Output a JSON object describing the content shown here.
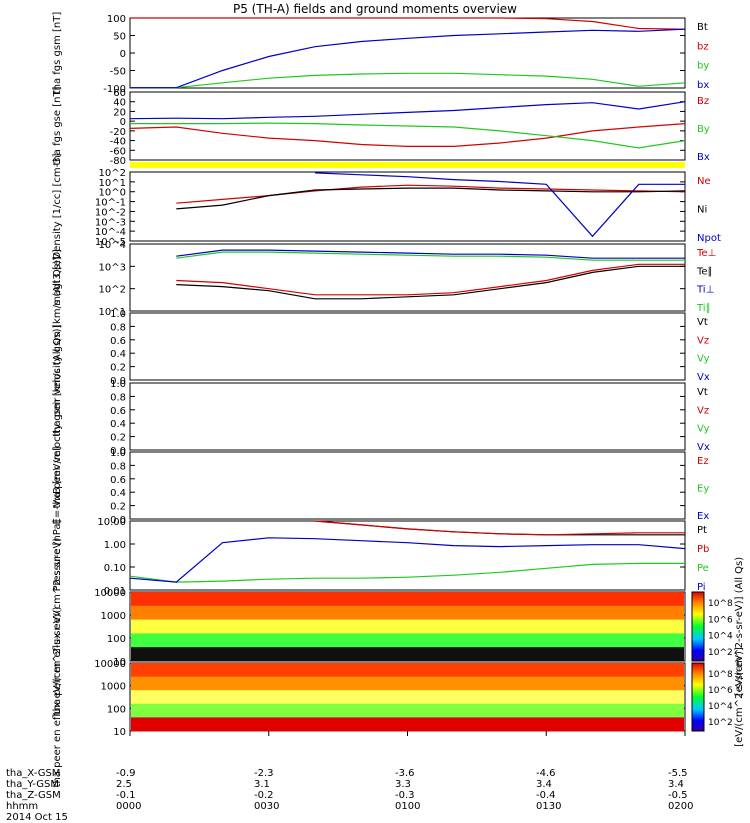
{
  "title": "P5 (TH-A) fields and ground moments overview",
  "colors": {
    "black": "#000000",
    "red": "#d40000",
    "green": "#20c820",
    "blue": "#0000c8",
    "yellow": "#ffff00"
  },
  "footer": {
    "labels": [
      "tha_X-GSM",
      "tha_Y-GSM",
      "tha_Z-GSM",
      "hhmm",
      "2014 Oct 15"
    ],
    "x_gsm": [
      "-0.9",
      "-2.3",
      "-3.6",
      "-4.6",
      "-5.5"
    ],
    "y_gsm": [
      "2.5",
      "3.1",
      "3.3",
      "3.4",
      "3.4"
    ],
    "z_gsm": [
      "-0.1",
      "-0.2",
      "-0.3",
      "-0.4",
      "-0.5"
    ],
    "hhmm": [
      "0000",
      "0030",
      "0100",
      "0130",
      "0200"
    ]
  },
  "chart_data": [
    {
      "type": "line",
      "id": "bfield_gsm",
      "ylabel": "tha fgs gsm [nT]",
      "ylim": [
        -100,
        100
      ],
      "yticks": [
        "100",
        "50",
        "0",
        "-50",
        "-100"
      ],
      "legend": [
        {
          "name": "Bt",
          "color": "black"
        },
        {
          "name": "bz",
          "color": "red"
        },
        {
          "name": "by",
          "color": "green"
        },
        {
          "name": "bx",
          "color": "blue"
        }
      ],
      "x": [
        0,
        10,
        20,
        30,
        40,
        50,
        60,
        70,
        80,
        90,
        100,
        110,
        120
      ],
      "series": [
        {
          "name": "bz",
          "color": "red",
          "values": [
            100,
            100,
            100,
            100,
            100,
            100,
            100,
            100,
            100,
            98,
            90,
            70,
            68
          ]
        },
        {
          "name": "by",
          "color": "green",
          "values": [
            -99,
            -99,
            -85,
            -72,
            -64,
            -60,
            -58,
            -58,
            -62,
            -66,
            -75,
            -95,
            -85
          ]
        },
        {
          "name": "bx",
          "color": "blue",
          "values": [
            -99,
            -99,
            -50,
            -10,
            18,
            33,
            42,
            50,
            55,
            60,
            65,
            62,
            68
          ]
        }
      ]
    },
    {
      "type": "line",
      "id": "bfield_gse",
      "ylabel": "tha fgs gse [nT]",
      "ylim": [
        -80,
        60
      ],
      "yticks": [
        "60",
        "40",
        "20",
        "0",
        "-20",
        "-40",
        "-60",
        "-80"
      ],
      "legend": [
        {
          "name": "Bz",
          "color": "red"
        },
        {
          "name": "By",
          "color": "green"
        },
        {
          "name": "Bx",
          "color": "blue"
        }
      ],
      "x": [
        0,
        10,
        20,
        30,
        40,
        50,
        60,
        70,
        80,
        90,
        100,
        110,
        120
      ],
      "series": [
        {
          "name": "Bz",
          "color": "red",
          "values": [
            -15,
            -12,
            -25,
            -35,
            -40,
            -48,
            -52,
            -52,
            -45,
            -35,
            -20,
            -12,
            -5
          ]
        },
        {
          "name": "By",
          "color": "green",
          "values": [
            -5,
            -5,
            -5,
            -4,
            -5,
            -8,
            -10,
            -12,
            -20,
            -30,
            -40,
            -55,
            -40
          ]
        },
        {
          "name": "Bx",
          "color": "blue",
          "values": [
            5,
            6,
            5,
            8,
            10,
            14,
            18,
            22,
            28,
            34,
            38,
            25,
            40
          ]
        }
      ]
    },
    {
      "type": "line",
      "id": "density",
      "ylabel": "Density [1/cc] [cm-3]",
      "ylim_log10": [
        -5,
        2.3
      ],
      "yticks": [
        "10^2",
        "10^1",
        "10^0",
        "10^-1",
        "10^-2",
        "10^-3",
        "10^-4",
        "10^-5"
      ],
      "legend": [
        {
          "name": "Ne",
          "color": "red"
        },
        {
          "name": "Ni",
          "color": "black"
        },
        {
          "name": "Npot",
          "color": "blue"
        }
      ],
      "x": [
        10,
        20,
        30,
        40,
        50,
        60,
        70,
        80,
        90,
        100,
        110,
        120
      ],
      "series": [
        {
          "name": "Ne",
          "color": "red",
          "log10_values": [
            -1,
            -0.6,
            -0.2,
            0.3,
            0.7,
            0.9,
            0.8,
            0.6,
            0.5,
            0.4,
            0.3,
            0.2
          ]
        },
        {
          "name": "Ni",
          "color": "black",
          "log10_values": [
            -1.6,
            -1.2,
            -0.2,
            0.4,
            0.5,
            0.6,
            0.6,
            0.4,
            0.3,
            0.2,
            0.2,
            0.3
          ]
        },
        {
          "name": "Npot",
          "color": "blue",
          "log10_values": [
            null,
            null,
            null,
            2.2,
            2.0,
            1.8,
            1.5,
            1.3,
            1.0,
            -4.5,
            1.0,
            1.0
          ]
        }
      ]
    },
    {
      "type": "line",
      "id": "temperature",
      "ylabel": "magt3 [eV]",
      "ylim_log10": [
        1,
        4.3
      ],
      "yticks": [
        "10^4",
        "10^3",
        "10^2",
        "10^1"
      ],
      "legend": [
        {
          "name": "Te⊥",
          "color": "red"
        },
        {
          "name": "Te∥",
          "color": "black"
        },
        {
          "name": "Ti⊥",
          "color": "blue"
        },
        {
          "name": "Ti∥",
          "color": "green"
        }
      ],
      "x": [
        10,
        20,
        30,
        40,
        50,
        60,
        70,
        80,
        90,
        100,
        110,
        120
      ],
      "series": [
        {
          "name": "Ti",
          "color": "blue",
          "log10_values": [
            3.7,
            4.0,
            4.0,
            3.95,
            3.9,
            3.85,
            3.8,
            3.8,
            3.75,
            3.6,
            3.6,
            3.6
          ]
        },
        {
          "name": "Ti∥",
          "color": "green",
          "log10_values": [
            3.6,
            3.9,
            3.9,
            3.85,
            3.8,
            3.75,
            3.7,
            3.7,
            3.65,
            3.5,
            3.5,
            3.5
          ]
        },
        {
          "name": "Te",
          "color": "red",
          "log10_values": [
            2.5,
            2.4,
            2.1,
            1.8,
            1.8,
            1.8,
            1.9,
            2.2,
            2.5,
            3.0,
            3.3,
            3.3
          ]
        },
        {
          "name": "Te∥",
          "color": "black",
          "log10_values": [
            2.3,
            2.2,
            2.0,
            1.6,
            1.6,
            1.7,
            1.8,
            2.1,
            2.4,
            2.9,
            3.2,
            3.2
          ]
        }
      ]
    },
    {
      "type": "line",
      "id": "ion_velocity",
      "ylabel": "tha peir velocity gsm [km/s (All Qs)]",
      "ylim": [
        0,
        1
      ],
      "yticks": [
        "1.0",
        "0.8",
        "0.6",
        "0.4",
        "0.2",
        "0.0"
      ],
      "legend": [
        {
          "name": "Vt",
          "color": "black"
        },
        {
          "name": "Vz",
          "color": "red"
        },
        {
          "name": "Vy",
          "color": "green"
        },
        {
          "name": "Vx",
          "color": "blue"
        }
      ],
      "series": []
    },
    {
      "type": "line",
      "id": "electron_velocity",
      "ylabel": "tha peer velocity gsm [km/s (All Qs)]",
      "ylim": [
        0,
        1
      ],
      "yticks": [
        "1.0",
        "0.8",
        "0.6",
        "0.4",
        "0.2",
        "0.0"
      ],
      "legend": [
        {
          "name": "Vt",
          "color": "black"
        },
        {
          "name": "Vz",
          "color": "red"
        },
        {
          "name": "Vy",
          "color": "green"
        },
        {
          "name": "Vx",
          "color": "blue"
        }
      ],
      "series": []
    },
    {
      "type": "line",
      "id": "efield",
      "ylabel": "E=-VxB [mV/m]",
      "ylim": [
        0,
        1
      ],
      "yticks": [
        "1.0",
        "0.8",
        "0.6",
        "0.4",
        "0.2",
        "0.0"
      ],
      "legend": [
        {
          "name": "Ez",
          "color": "red"
        },
        {
          "name": "Ey",
          "color": "green"
        },
        {
          "name": "Ex",
          "color": "blue"
        }
      ],
      "series": []
    },
    {
      "type": "line",
      "id": "pressure",
      "ylabel": "Pressure [nPa]",
      "ylim_log10": [
        -2.2,
        1.3
      ],
      "yticks": [
        "10.00",
        "1.00",
        "0.10",
        "0.01"
      ],
      "legend": [
        {
          "name": "Pt",
          "color": "black"
        },
        {
          "name": "Pb",
          "color": "red"
        },
        {
          "name": "Pe",
          "color": "green"
        },
        {
          "name": "Pi",
          "color": "blue"
        }
      ],
      "x": [
        0,
        10,
        20,
        30,
        40,
        50,
        60,
        70,
        80,
        90,
        100,
        110,
        120
      ],
      "series": [
        {
          "name": "Pt",
          "color": "black",
          "log10_values": [
            null,
            null,
            null,
            null,
            1.3,
            1.1,
            0.9,
            0.75,
            0.65,
            0.6,
            0.6,
            0.6,
            0.6
          ]
        },
        {
          "name": "Pb",
          "color": "red",
          "log10_values": [
            null,
            null,
            null,
            null,
            1.3,
            1.1,
            0.9,
            0.75,
            0.65,
            0.6,
            0.65,
            0.7,
            0.7
          ]
        },
        {
          "name": "Pe",
          "color": "green",
          "log10_values": [
            -1.5,
            -1.8,
            -1.75,
            -1.65,
            -1.6,
            -1.6,
            -1.55,
            -1.45,
            -1.3,
            -1.1,
            -0.9,
            -0.85,
            -0.85
          ]
        },
        {
          "name": "Pi",
          "color": "blue",
          "log10_values": [
            -1.6,
            -1.8,
            0.2,
            0.45,
            0.4,
            0.3,
            0.2,
            0.05,
            0.0,
            0.05,
            0.1,
            0.1,
            -0.1
          ]
        }
      ]
    },
    {
      "type": "heatmap",
      "id": "ion_spectrogram",
      "ylabel": "tha peir en eflux eV/(cm^2-s-sr-eV)",
      "yticks": [
        "10000",
        "1000",
        "100",
        "10"
      ],
      "colorbar_label": "[eV/(cm^2-s-sr-eV)] (All Qs)",
      "colorbar_ticks": [
        "10^8",
        "10^6",
        "10^4",
        "10^2"
      ]
    },
    {
      "type": "heatmap",
      "id": "electron_spectrogram",
      "ylabel": "tha peer en eflux eV/(cm^2-s-sr-eV)",
      "yticks": [
        "10000",
        "1000",
        "100",
        "10"
      ],
      "colorbar_label": "[eV/(cm^2-s-sr-eV)]",
      "colorbar_ticks": [
        "10^8",
        "10^6",
        "10^4",
        "10^2"
      ]
    }
  ]
}
